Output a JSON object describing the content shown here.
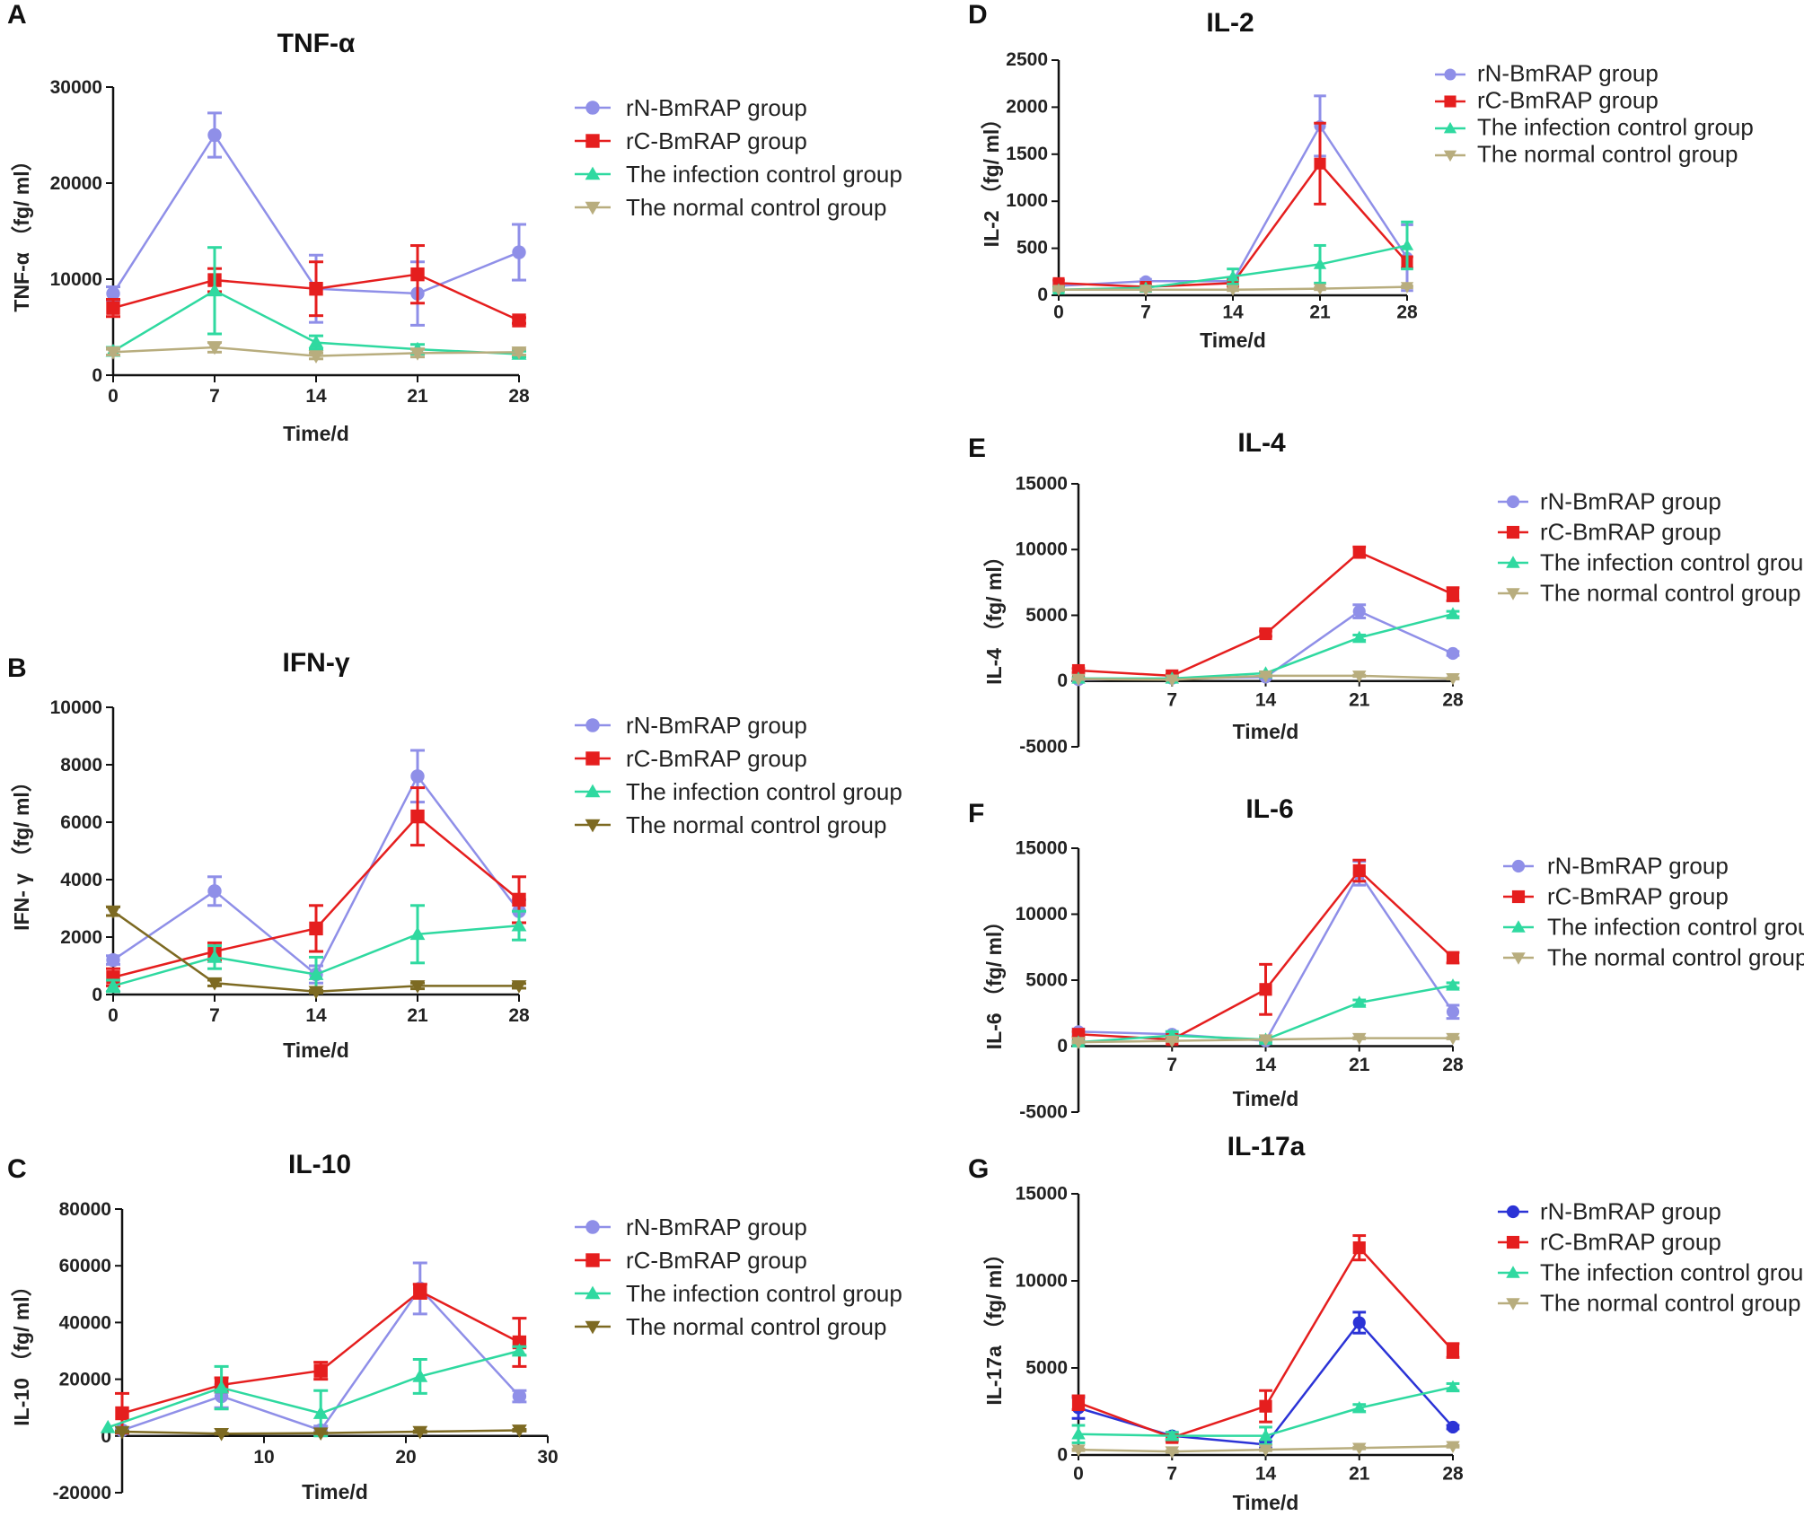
{
  "figure": {
    "panels": [
      "A",
      "B",
      "C",
      "D",
      "E",
      "F",
      "G"
    ]
  },
  "chart_data": [
    {
      "panel": "A",
      "type": "line",
      "title": "TNF-α",
      "xlabel": "Time/d",
      "ylabel": "TNF-α （fg/ ml）",
      "x": [
        0,
        7,
        14,
        21,
        28
      ],
      "xlim": [
        0,
        28
      ],
      "ylim": [
        0,
        30000
      ],
      "xticks": [
        0,
        7,
        14,
        21,
        28
      ],
      "yticks": [
        0,
        10000,
        20000,
        30000
      ],
      "legend_position": "right",
      "series": [
        {
          "name": "rN-BmRAP group",
          "color": "#8f8fe8",
          "marker": "circle",
          "values": [
            8500,
            25000,
            9000,
            8500,
            12800
          ],
          "errors": [
            700,
            2300,
            3500,
            3300,
            2900
          ]
        },
        {
          "name": "rC-BmRAP group",
          "color": "#e51e1e",
          "marker": "square",
          "values": [
            7000,
            9900,
            9000,
            10500,
            5700
          ],
          "errors": [
            900,
            1200,
            2800,
            3000,
            300
          ]
        },
        {
          "name": "The infection control group",
          "color": "#2fd9a0",
          "marker": "triangle-up",
          "values": [
            2500,
            8800,
            3400,
            2700,
            2200
          ],
          "errors": [
            400,
            4500,
            700,
            500,
            300
          ]
        },
        {
          "name": "The normal control group",
          "color": "#b8ad7e",
          "marker": "triangle-down",
          "values": [
            2400,
            2900,
            2000,
            2300,
            2400
          ],
          "errors": [
            300,
            500,
            300,
            400,
            300
          ]
        }
      ]
    },
    {
      "panel": "B",
      "type": "line",
      "title": "IFN-γ",
      "xlabel": "Time/d",
      "ylabel": "IFN- γ （fg/ ml）",
      "x": [
        0,
        7,
        14,
        21,
        28
      ],
      "xlim": [
        0,
        28
      ],
      "ylim": [
        0,
        10000
      ],
      "xticks": [
        0,
        7,
        14,
        21,
        28
      ],
      "yticks": [
        0,
        2000,
        4000,
        6000,
        8000,
        10000
      ],
      "legend_position": "right",
      "series": [
        {
          "name": "rN-BmRAP group",
          "color": "#8f8fe8",
          "marker": "circle",
          "values": [
            1200,
            3600,
            700,
            7600,
            2900
          ],
          "errors": [
            150,
            500,
            300,
            900,
            400
          ]
        },
        {
          "name": "rC-BmRAP group",
          "color": "#e51e1e",
          "marker": "square",
          "values": [
            600,
            1500,
            2300,
            6200,
            3300
          ],
          "errors": [
            300,
            300,
            800,
            1000,
            800
          ]
        },
        {
          "name": "The infection control group",
          "color": "#2fd9a0",
          "marker": "triangle-up",
          "values": [
            300,
            1300,
            700,
            2100,
            2400
          ],
          "errors": [
            200,
            400,
            600,
            1000,
            500
          ]
        },
        {
          "name": "The normal control group",
          "color": "#7d6a22",
          "marker": "triangle-down",
          "values": [
            2900,
            400,
            100,
            300,
            300
          ],
          "errors": [
            150,
            100,
            50,
            100,
            80
          ]
        }
      ]
    },
    {
      "panel": "C",
      "type": "line",
      "title": "IL-10",
      "xlabel": "Time/d",
      "ylabel": "IL-10 （fg/ ml）",
      "xlim": [
        0,
        30
      ],
      "ylim": [
        -20000,
        80000
      ],
      "xticks": [
        10,
        20,
        30
      ],
      "yticks": [
        -20000,
        0,
        20000,
        40000,
        60000,
        80000
      ],
      "legend_position": "right",
      "series": [
        {
          "name": "rN-BmRAP group",
          "color": "#8f8fe8",
          "marker": "circle",
          "x": [
            0,
            7,
            14,
            21,
            28
          ],
          "values": [
            2000,
            14000,
            2000,
            52000,
            14000
          ],
          "errors": [
            800,
            4000,
            1500,
            9000,
            2000
          ]
        },
        {
          "name": "rC-BmRAP group",
          "color": "#e51e1e",
          "marker": "square",
          "x": [
            0,
            7,
            14,
            21,
            28
          ],
          "values": [
            8000,
            18000,
            23000,
            51000,
            33000
          ],
          "errors": [
            7000,
            2500,
            3000,
            2500,
            8500
          ]
        },
        {
          "name": "The infection control group",
          "color": "#2fd9a0",
          "marker": "triangle-up",
          "x": [
            -1,
            7,
            14,
            21,
            28
          ],
          "values": [
            3000,
            17000,
            8000,
            21000,
            30000
          ],
          "errors": [
            0,
            7500,
            8000,
            6000,
            1500
          ]
        },
        {
          "name": "The normal control group",
          "color": "#7d6a22",
          "marker": "triangle-down",
          "x": [
            0,
            7,
            14,
            21,
            28
          ],
          "values": [
            1500,
            800,
            1000,
            1500,
            2000
          ],
          "errors": [
            300,
            200,
            200,
            300,
            300
          ]
        }
      ]
    },
    {
      "panel": "D",
      "type": "line",
      "title": "IL-2",
      "xlabel": "Time/d",
      "ylabel": "IL-2 （fg/ ml）",
      "x": [
        0,
        7,
        14,
        21,
        28
      ],
      "xlim": [
        0,
        28
      ],
      "ylim": [
        0,
        2500
      ],
      "xticks": [
        0,
        7,
        14,
        21,
        28
      ],
      "yticks": [
        0,
        500,
        1000,
        1500,
        2000,
        2500
      ],
      "legend_position": "right",
      "series": [
        {
          "name": "rN-BmRAP group",
          "color": "#8f8fe8",
          "marker": "circle",
          "values": [
            100,
            150,
            150,
            1800,
            400
          ],
          "errors": [
            30,
            20,
            40,
            320,
            350
          ]
        },
        {
          "name": "rC-BmRAP group",
          "color": "#e51e1e",
          "marker": "square",
          "values": [
            130,
            90,
            130,
            1400,
            350
          ],
          "errors": [
            30,
            20,
            30,
            430,
            60
          ]
        },
        {
          "name": "The infection control group",
          "color": "#2fd9a0",
          "marker": "triangle-up",
          "values": [
            60,
            80,
            200,
            330,
            530
          ],
          "errors": [
            20,
            20,
            80,
            200,
            250
          ]
        },
        {
          "name": "The normal control group",
          "color": "#b8ad7e",
          "marker": "triangle-down",
          "values": [
            60,
            60,
            60,
            70,
            90
          ],
          "errors": [
            10,
            10,
            10,
            10,
            10
          ]
        }
      ]
    },
    {
      "panel": "E",
      "type": "line",
      "title": "IL-4",
      "xlabel": "Time/d",
      "ylabel": "IL-4 （fg/ ml）",
      "x": [
        0,
        7,
        14,
        21,
        28
      ],
      "xlim": [
        0,
        28
      ],
      "ylim": [
        -5000,
        15000
      ],
      "xticks": [
        7,
        14,
        21,
        28
      ],
      "yticks": [
        -5000,
        0,
        5000,
        10000,
        15000
      ],
      "legend_position": "right",
      "series": [
        {
          "name": "rN-BmRAP group",
          "color": "#8f8fe8",
          "marker": "circle",
          "values": [
            100,
            200,
            300,
            5300,
            2100
          ],
          "errors": [
            50,
            50,
            100,
            500,
            150
          ]
        },
        {
          "name": "rC-BmRAP group",
          "color": "#e51e1e",
          "marker": "square",
          "values": [
            800,
            400,
            3600,
            9800,
            6600
          ],
          "errors": [
            150,
            100,
            200,
            400,
            500
          ]
        },
        {
          "name": "The infection control group",
          "color": "#2fd9a0",
          "marker": "triangle-up",
          "values": [
            200,
            200,
            600,
            3300,
            5100
          ],
          "errors": [
            50,
            50,
            100,
            200,
            200
          ]
        },
        {
          "name": "The normal control group",
          "color": "#b8ad7e",
          "marker": "triangle-down",
          "values": [
            150,
            100,
            400,
            400,
            200
          ],
          "errors": [
            30,
            30,
            50,
            50,
            50
          ]
        }
      ]
    },
    {
      "panel": "F",
      "type": "line",
      "title": "IL-6",
      "xlabel": "Time/d",
      "ylabel": "IL-6 （fg/ ml）",
      "x": [
        0,
        7,
        14,
        21,
        28
      ],
      "xlim": [
        0,
        28
      ],
      "ylim": [
        -5000,
        15000
      ],
      "xticks": [
        7,
        14,
        21,
        28
      ],
      "yticks": [
        -5000,
        0,
        5000,
        10000,
        15000
      ],
      "legend_position": "right",
      "series": [
        {
          "name": "rN-BmRAP group",
          "color": "#8f8fe8",
          "marker": "circle",
          "values": [
            1100,
            900,
            400,
            13100,
            2600
          ],
          "errors": [
            200,
            200,
            100,
            900,
            500
          ]
        },
        {
          "name": "rC-BmRAP group",
          "color": "#e51e1e",
          "marker": "square",
          "values": [
            900,
            500,
            4300,
            13300,
            6700
          ],
          "errors": [
            200,
            100,
            1900,
            800,
            400
          ]
        },
        {
          "name": "The infection control group",
          "color": "#2fd9a0",
          "marker": "triangle-up",
          "values": [
            300,
            800,
            500,
            3300,
            4600
          ],
          "errors": [
            100,
            300,
            200,
            200,
            200
          ]
        },
        {
          "name": "The normal control group",
          "color": "#b8ad7e",
          "marker": "triangle-down",
          "values": [
            300,
            400,
            500,
            600,
            600
          ],
          "errors": [
            50,
            50,
            50,
            50,
            50
          ]
        }
      ]
    },
    {
      "panel": "G",
      "type": "line",
      "title": "IL-17a",
      "xlabel": "Time/d",
      "ylabel": "IL-17a （fg/ ml）",
      "x": [
        0,
        7,
        14,
        21,
        28
      ],
      "xlim": [
        0,
        28
      ],
      "ylim": [
        0,
        15000
      ],
      "xticks": [
        0,
        7,
        14,
        21,
        28
      ],
      "yticks": [
        0,
        5000,
        10000,
        15000
      ],
      "legend_position": "right",
      "series": [
        {
          "name": "rN-BmRAP group",
          "color": "#2b33d6",
          "marker": "circle",
          "values": [
            2700,
            1100,
            600,
            7600,
            1600
          ],
          "errors": [
            600,
            200,
            200,
            600,
            100
          ]
        },
        {
          "name": "rC-BmRAP group",
          "color": "#e51e1e",
          "marker": "square",
          "values": [
            3000,
            1000,
            2800,
            11900,
            6000
          ],
          "errors": [
            400,
            200,
            900,
            700,
            400
          ]
        },
        {
          "name": "The infection control group",
          "color": "#2fd9a0",
          "marker": "triangle-up",
          "values": [
            1200,
            1100,
            1100,
            2700,
            3900
          ],
          "errors": [
            500,
            200,
            500,
            200,
            200
          ]
        },
        {
          "name": "The normal control group",
          "color": "#b8ad7e",
          "marker": "triangle-down",
          "values": [
            300,
            200,
            300,
            400,
            500
          ],
          "errors": [
            50,
            50,
            50,
            50,
            50
          ]
        }
      ]
    }
  ]
}
